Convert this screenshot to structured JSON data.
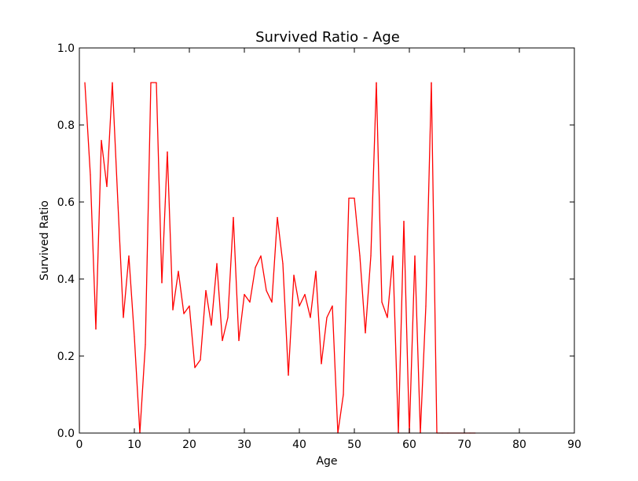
{
  "chart_data": {
    "type": "line",
    "title": "Survived Ratio - Age",
    "xlabel": "Age",
    "ylabel": "Survived Ratio",
    "xlim": [
      0,
      90
    ],
    "ylim": [
      0.0,
      1.0
    ],
    "xticks": [
      "0",
      "10",
      "20",
      "30",
      "40",
      "50",
      "60",
      "70",
      "80",
      "90"
    ],
    "yticks": [
      "0.0",
      "0.2",
      "0.4",
      "0.6",
      "0.8",
      "1.0"
    ],
    "grid": false,
    "legend": "none",
    "series": [
      {
        "color": "#ff0000",
        "x": [
          1,
          2,
          3,
          4,
          5,
          6,
          7,
          8,
          9,
          10,
          11,
          12,
          13,
          14,
          15,
          16,
          17,
          18,
          19,
          20,
          21,
          22,
          23,
          24,
          25,
          26,
          27,
          28,
          29,
          30,
          31,
          32,
          33,
          34,
          35,
          36,
          37,
          38,
          39,
          40,
          41,
          42,
          43,
          44,
          45,
          46,
          47,
          48,
          49,
          50,
          51,
          52,
          53,
          54,
          55,
          56,
          57,
          58,
          59,
          60,
          61,
          62,
          63,
          64,
          65,
          66,
          67,
          70,
          71,
          72
        ],
        "y": [
          0.91,
          0.67,
          0.27,
          0.76,
          0.64,
          0.91,
          0.6,
          0.3,
          0.46,
          0.25,
          0.0,
          0.23,
          0.91,
          0.91,
          0.39,
          0.73,
          0.32,
          0.42,
          0.31,
          0.33,
          0.17,
          0.19,
          0.37,
          0.28,
          0.44,
          0.24,
          0.3,
          0.56,
          0.24,
          0.36,
          0.34,
          0.43,
          0.46,
          0.37,
          0.34,
          0.56,
          0.44,
          0.15,
          0.41,
          0.33,
          0.36,
          0.3,
          0.42,
          0.18,
          0.3,
          0.33,
          0.0,
          0.1,
          0.61,
          0.61,
          0.46,
          0.26,
          0.46,
          0.91,
          0.34,
          0.3,
          0.46,
          0.0,
          0.55,
          0.0,
          0.46,
          0.0,
          0.33,
          0.91,
          0.0,
          0.0,
          0.0,
          0.0,
          0.0,
          0.0
        ]
      }
    ]
  }
}
